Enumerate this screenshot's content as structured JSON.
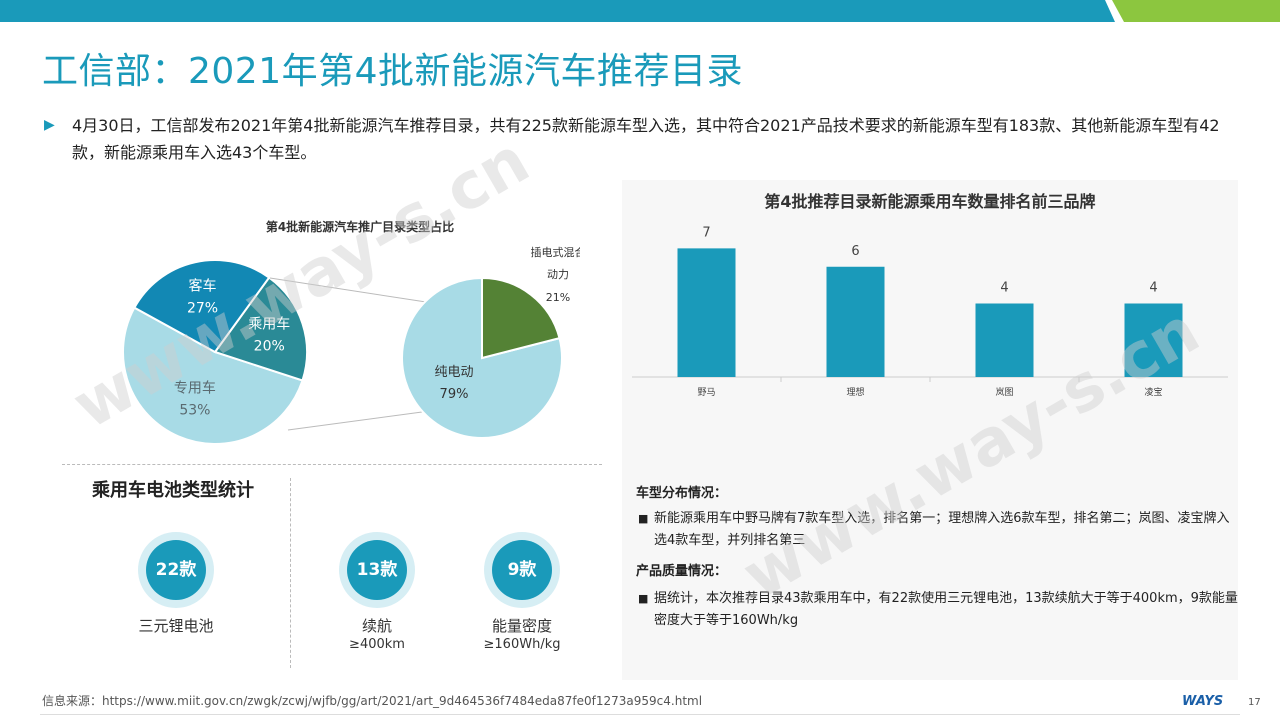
{
  "title": "工信部：2021年第4批新能源汽车推荐目录",
  "intro": {
    "bullet_icon": "triangle-right-icon",
    "text": "4月30日，工信部发布2021年第4批新能源汽车推荐目录，共有225款新能源车型入选，其中符合2021产品技术要求的新能源车型有183款、其他新能源车型有42款，新能源乘用车入选43个车型。"
  },
  "watermark": "www.way-s.cn",
  "colors": {
    "accent": "#1a9aba",
    "green_accent": "#8cc63f",
    "pie_light": "#a8dbe6",
    "pie_dark_teal": "#2a8a96",
    "pie_blue": "#1288b4",
    "pie_green": "#548235",
    "bar": "#1a9aba"
  },
  "chart_data": [
    {
      "type": "pie",
      "title": "第4批新能源汽车推广目录类型占比",
      "slices": [
        {
          "label": "专用车",
          "value": 53,
          "display": "53%"
        },
        {
          "label": "乘用车",
          "value": 20,
          "display": "20%"
        },
        {
          "label": "客车",
          "value": 27,
          "display": "27%"
        }
      ]
    },
    {
      "type": "pie",
      "title": "",
      "slices": [
        {
          "label": "纯电动",
          "value": 79,
          "display": "79%"
        },
        {
          "label": "插电式混合动力",
          "label_lines": [
            "插电式混合",
            "动力"
          ],
          "value": 21,
          "display": "21%"
        }
      ]
    },
    {
      "type": "bar",
      "title": "第4批推荐目录新能源乘用车数量排名前三品牌",
      "categories": [
        "野马",
        "理想",
        "岚图",
        "凌宝"
      ],
      "values": [
        7,
        6,
        4,
        4
      ],
      "ylim": [
        0,
        8
      ],
      "grid": false
    }
  ],
  "distribution": {
    "heading": "车型分布情况：",
    "text": "新能源乘用车中野马牌有7款车型入选，排名第一；理想牌入选6款车型，排名第二；岚图、凌宝牌入选4款车型，并列排名第三"
  },
  "quality": {
    "heading": "产品质量情况：",
    "text": "据统计，本次推荐目录43款乘用车中，有22款使用三元锂电池，13款续航大于等于400km，9款能量密度大于等于160Wh/kg"
  },
  "bullet_square": "■",
  "battery": {
    "title": "乘用车电池类型统计",
    "stats": [
      {
        "value": "22款",
        "label": "三元锂电池",
        "sub": ""
      },
      {
        "value": "13款",
        "label": "续航",
        "sub": "≥400km"
      },
      {
        "value": "9款",
        "label": "能量密度",
        "sub": "≥160Wh/kg"
      }
    ]
  },
  "footer": {
    "source": "信息来源：https://www.miit.gov.cn/zwgk/zcwj/wjfb/gg/art/2021/art_9d464536f7484eda87fe0f1273a959c4.html",
    "logo": "WAYS",
    "page": "17"
  }
}
